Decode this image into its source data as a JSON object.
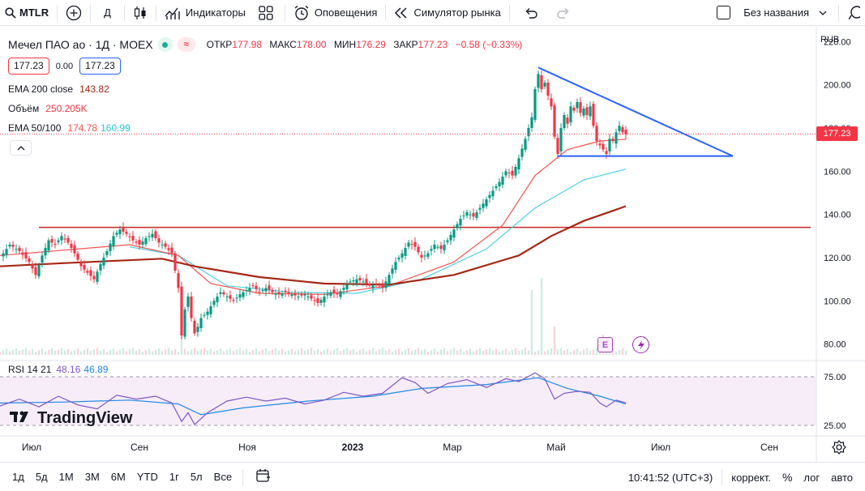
{
  "toolbar": {
    "symbol": "MTLR",
    "interval": "Д",
    "indicators": "Индикаторы",
    "alerts": "Оповещения",
    "replay": "Симулятор рынка",
    "layout_name": "Без названия"
  },
  "legend": {
    "title": "Мечел ПАО ао · 1Д · MOEX",
    "ohlc": {
      "open_label": "ОТКР",
      "open": "177.98",
      "high_label": "МАКС",
      "high": "178.00",
      "low_label": "МИН",
      "low": "176.29",
      "close_label": "ЗАКР",
      "close": "177.23",
      "change": "−0.58 (−0.33%)"
    },
    "bid": "177.23",
    "spread": "0.00",
    "ask": "177.23",
    "ema200_label": "EMA 200 close",
    "ema200_value": "143.82",
    "volume_label": "Объём",
    "volume_value": "250.205K",
    "ema_pair_label": "EMA 50/100",
    "ema50_value": "174.78",
    "ema100_value": "160.99",
    "rsi_label": "RSI 14 21",
    "rsi_value1": "48.16",
    "rsi_value2": "46.89",
    "event_e": "E"
  },
  "price_axis": {
    "currency": "RUB",
    "current_price": "177.23"
  },
  "brand": "TradingView",
  "colors": {
    "up": "#089981",
    "down": "#f23645",
    "ema200": "#a52714",
    "ema50": "#f05350",
    "ema100": "#4dd0e1",
    "trendline": "#2962ff",
    "hline": "#c62828",
    "rsi": "#7e57c2",
    "rsi_signal": "#1e88e5"
  },
  "bottom": {
    "ranges": [
      "1д",
      "5д",
      "1М",
      "3М",
      "6М",
      "YTD",
      "1г",
      "5л",
      "Все"
    ],
    "clock": "10:41:52 (UTC+3)",
    "adjust": "коррект.",
    "percent": "%",
    "log": "лог",
    "auto": "авто"
  },
  "chart_data": {
    "type": "candlestick",
    "price_ticks": [
      "220.00",
      "200.00",
      "180.00",
      "160.00",
      "140.00",
      "120.00",
      "100.00",
      "80.00"
    ],
    "rsi_ticks": [
      "75.00",
      "25.00"
    ],
    "time_labels": [
      "Июл",
      "Сен",
      "Ноя",
      "2023",
      "Мар",
      "Май",
      "Июл",
      "Сен"
    ],
    "close_series": [
      {
        "x": 0,
        "y": 120
      },
      {
        "x": 3,
        "y": 126
      },
      {
        "x": 6,
        "y": 123
      },
      {
        "x": 9,
        "y": 118
      },
      {
        "x": 11,
        "y": 112
      },
      {
        "x": 13,
        "y": 121
      },
      {
        "x": 15,
        "y": 128
      },
      {
        "x": 17,
        "y": 126
      },
      {
        "x": 19,
        "y": 130
      },
      {
        "x": 21,
        "y": 127
      },
      {
        "x": 23,
        "y": 122
      },
      {
        "x": 25,
        "y": 116
      },
      {
        "x": 27,
        "y": 113
      },
      {
        "x": 29,
        "y": 110
      },
      {
        "x": 31,
        "y": 117
      },
      {
        "x": 33,
        "y": 123
      },
      {
        "x": 35,
        "y": 130
      },
      {
        "x": 37,
        "y": 133
      },
      {
        "x": 39,
        "y": 131
      },
      {
        "x": 41,
        "y": 128
      },
      {
        "x": 43,
        "y": 126
      },
      {
        "x": 45,
        "y": 129
      },
      {
        "x": 47,
        "y": 131
      },
      {
        "x": 49,
        "y": 127
      },
      {
        "x": 51,
        "y": 125
      },
      {
        "x": 53,
        "y": 122
      },
      {
        "x": 55,
        "y": 106
      },
      {
        "x": 56,
        "y": 84
      },
      {
        "x": 57,
        "y": 96
      },
      {
        "x": 58,
        "y": 102
      },
      {
        "x": 59,
        "y": 92
      },
      {
        "x": 60,
        "y": 85
      },
      {
        "x": 61,
        "y": 88
      },
      {
        "x": 62,
        "y": 92
      },
      {
        "x": 64,
        "y": 95
      },
      {
        "x": 66,
        "y": 100
      },
      {
        "x": 68,
        "y": 104
      },
      {
        "x": 70,
        "y": 102
      },
      {
        "x": 72,
        "y": 100
      },
      {
        "x": 74,
        "y": 103
      },
      {
        "x": 76,
        "y": 105
      },
      {
        "x": 78,
        "y": 107
      },
      {
        "x": 80,
        "y": 104
      },
      {
        "x": 82,
        "y": 106
      },
      {
        "x": 84,
        "y": 104
      },
      {
        "x": 86,
        "y": 103
      },
      {
        "x": 88,
        "y": 104
      },
      {
        "x": 90,
        "y": 103
      },
      {
        "x": 92,
        "y": 102
      },
      {
        "x": 94,
        "y": 103
      },
      {
        "x": 96,
        "y": 101
      },
      {
        "x": 98,
        "y": 99
      },
      {
        "x": 100,
        "y": 102
      },
      {
        "x": 102,
        "y": 104
      },
      {
        "x": 104,
        "y": 103
      },
      {
        "x": 106,
        "y": 106
      },
      {
        "x": 108,
        "y": 109
      },
      {
        "x": 110,
        "y": 110
      },
      {
        "x": 112,
        "y": 109
      },
      {
        "x": 114,
        "y": 107
      },
      {
        "x": 116,
        "y": 108
      },
      {
        "x": 118,
        "y": 106
      },
      {
        "x": 120,
        "y": 112
      },
      {
        "x": 122,
        "y": 118
      },
      {
        "x": 124,
        "y": 122
      },
      {
        "x": 126,
        "y": 127
      },
      {
        "x": 128,
        "y": 125
      },
      {
        "x": 130,
        "y": 120
      },
      {
        "x": 132,
        "y": 122
      },
      {
        "x": 134,
        "y": 126
      },
      {
        "x": 136,
        "y": 124
      },
      {
        "x": 138,
        "y": 128
      },
      {
        "x": 140,
        "y": 133
      },
      {
        "x": 142,
        "y": 138
      },
      {
        "x": 144,
        "y": 141
      },
      {
        "x": 146,
        "y": 139
      },
      {
        "x": 148,
        "y": 143
      },
      {
        "x": 150,
        "y": 147
      },
      {
        "x": 152,
        "y": 151
      },
      {
        "x": 154,
        "y": 155
      },
      {
        "x": 156,
        "y": 160
      },
      {
        "x": 158,
        "y": 158
      },
      {
        "x": 160,
        "y": 166
      },
      {
        "x": 162,
        "y": 175
      },
      {
        "x": 164,
        "y": 185
      },
      {
        "x": 165,
        "y": 198
      },
      {
        "x": 166,
        "y": 205
      },
      {
        "x": 167,
        "y": 198
      },
      {
        "x": 168,
        "y": 201
      },
      {
        "x": 169,
        "y": 195
      },
      {
        "x": 170,
        "y": 190
      },
      {
        "x": 171,
        "y": 176
      },
      {
        "x": 172,
        "y": 168
      },
      {
        "x": 173,
        "y": 180
      },
      {
        "x": 174,
        "y": 186
      },
      {
        "x": 175,
        "y": 182
      },
      {
        "x": 176,
        "y": 190
      },
      {
        "x": 177,
        "y": 188
      },
      {
        "x": 178,
        "y": 192
      },
      {
        "x": 179,
        "y": 187
      },
      {
        "x": 180,
        "y": 189
      },
      {
        "x": 181,
        "y": 186
      },
      {
        "x": 182,
        "y": 190
      },
      {
        "x": 183,
        "y": 181
      },
      {
        "x": 184,
        "y": 174
      },
      {
        "x": 185,
        "y": 172
      },
      {
        "x": 186,
        "y": 170
      },
      {
        "x": 187,
        "y": 168
      },
      {
        "x": 188,
        "y": 175
      },
      {
        "x": 189,
        "y": 174
      },
      {
        "x": 190,
        "y": 178
      },
      {
        "x": 191,
        "y": 181
      },
      {
        "x": 192,
        "y": 178
      },
      {
        "x": 193,
        "y": 177
      }
    ],
    "ema200": [
      {
        "x": 0,
        "y": 116
      },
      {
        "x": 20,
        "y": 117.5
      },
      {
        "x": 50,
        "y": 119.5
      },
      {
        "x": 60,
        "y": 116
      },
      {
        "x": 80,
        "y": 111
      },
      {
        "x": 100,
        "y": 108
      },
      {
        "x": 120,
        "y": 107.5
      },
      {
        "x": 140,
        "y": 112
      },
      {
        "x": 160,
        "y": 121
      },
      {
        "x": 170,
        "y": 130
      },
      {
        "x": 180,
        "y": 137
      },
      {
        "x": 193,
        "y": 143.8
      }
    ],
    "ema50": [
      {
        "x": 0,
        "y": 121
      },
      {
        "x": 40,
        "y": 126
      },
      {
        "x": 55,
        "y": 121
      },
      {
        "x": 65,
        "y": 108
      },
      {
        "x": 80,
        "y": 103.5
      },
      {
        "x": 100,
        "y": 103
      },
      {
        "x": 120,
        "y": 107
      },
      {
        "x": 140,
        "y": 118
      },
      {
        "x": 155,
        "y": 135
      },
      {
        "x": 165,
        "y": 158
      },
      {
        "x": 175,
        "y": 170
      },
      {
        "x": 185,
        "y": 174
      },
      {
        "x": 193,
        "y": 174.8
      }
    ],
    "ema100": [
      {
        "x": 40,
        "y": 125
      },
      {
        "x": 55,
        "y": 121
      },
      {
        "x": 70,
        "y": 107
      },
      {
        "x": 90,
        "y": 104
      },
      {
        "x": 110,
        "y": 103.5
      },
      {
        "x": 130,
        "y": 110
      },
      {
        "x": 150,
        "y": 124
      },
      {
        "x": 165,
        "y": 143
      },
      {
        "x": 180,
        "y": 156
      },
      {
        "x": 193,
        "y": 161
      }
    ],
    "rsi": [
      {
        "x": 0,
        "y": 45
      },
      {
        "x": 6,
        "y": 52
      },
      {
        "x": 12,
        "y": 44
      },
      {
        "x": 18,
        "y": 55
      },
      {
        "x": 24,
        "y": 46
      },
      {
        "x": 30,
        "y": 42
      },
      {
        "x": 36,
        "y": 56
      },
      {
        "x": 42,
        "y": 52
      },
      {
        "x": 48,
        "y": 55
      },
      {
        "x": 53,
        "y": 48
      },
      {
        "x": 56,
        "y": 29
      },
      {
        "x": 58,
        "y": 38
      },
      {
        "x": 60,
        "y": 26
      },
      {
        "x": 64,
        "y": 38
      },
      {
        "x": 70,
        "y": 50
      },
      {
        "x": 76,
        "y": 54
      },
      {
        "x": 82,
        "y": 50
      },
      {
        "x": 88,
        "y": 53
      },
      {
        "x": 94,
        "y": 47
      },
      {
        "x": 100,
        "y": 51
      },
      {
        "x": 106,
        "y": 59
      },
      {
        "x": 112,
        "y": 55
      },
      {
        "x": 118,
        "y": 58
      },
      {
        "x": 124,
        "y": 74
      },
      {
        "x": 128,
        "y": 69
      },
      {
        "x": 132,
        "y": 58
      },
      {
        "x": 138,
        "y": 68
      },
      {
        "x": 144,
        "y": 72
      },
      {
        "x": 150,
        "y": 64
      },
      {
        "x": 156,
        "y": 73
      },
      {
        "x": 160,
        "y": 70
      },
      {
        "x": 165,
        "y": 79
      },
      {
        "x": 168,
        "y": 73
      },
      {
        "x": 171,
        "y": 52
      },
      {
        "x": 174,
        "y": 58
      },
      {
        "x": 178,
        "y": 60
      },
      {
        "x": 182,
        "y": 59
      },
      {
        "x": 185,
        "y": 48
      },
      {
        "x": 187,
        "y": 44
      },
      {
        "x": 190,
        "y": 51
      },
      {
        "x": 193,
        "y": 48.2
      }
    ],
    "rsi_signal": [
      {
        "x": 0,
        "y": 48
      },
      {
        "x": 20,
        "y": 49
      },
      {
        "x": 40,
        "y": 51
      },
      {
        "x": 55,
        "y": 47
      },
      {
        "x": 62,
        "y": 36
      },
      {
        "x": 75,
        "y": 43
      },
      {
        "x": 95,
        "y": 50
      },
      {
        "x": 115,
        "y": 55
      },
      {
        "x": 130,
        "y": 63
      },
      {
        "x": 150,
        "y": 67
      },
      {
        "x": 166,
        "y": 74
      },
      {
        "x": 175,
        "y": 63
      },
      {
        "x": 185,
        "y": 55
      },
      {
        "x": 193,
        "y": 46.9
      }
    ],
    "horizontal_line": {
      "price": 134,
      "x_from": 12,
      "x_to": 250
    },
    "triangle_top": {
      "from": {
        "x": 166,
        "y": 208
      },
      "to": {
        "x": 226,
        "y": 167
      }
    },
    "triangle_base": {
      "from": {
        "x": 172,
        "y": 167
      },
      "to": {
        "x": 226,
        "y": 167
      }
    },
    "volume_spikes": [
      {
        "x": 56,
        "y": 0.35
      },
      {
        "x": 164,
        "y": 0.8
      },
      {
        "x": 167,
        "y": 0.95
      },
      {
        "x": 171,
        "y": 0.35
      },
      {
        "x": 186,
        "y": 0.25
      }
    ],
    "x_range": [
      0,
      250
    ],
    "y_range": [
      75,
      225
    ],
    "rsi_range": [
      20,
      85
    ]
  }
}
